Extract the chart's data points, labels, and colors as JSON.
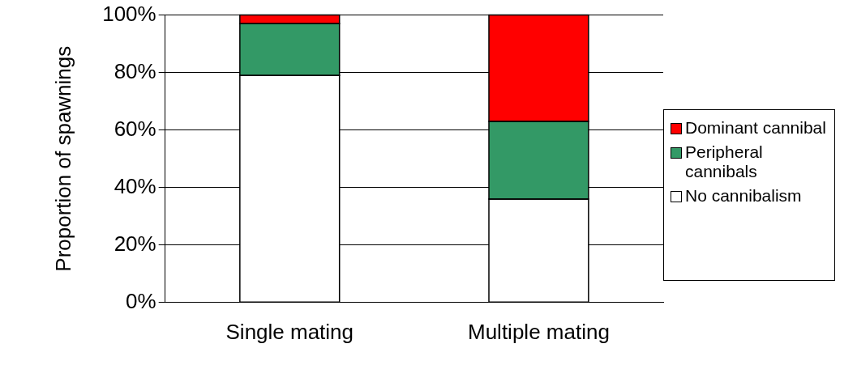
{
  "chart_data": {
    "type": "bar",
    "stacked": true,
    "ylabel": "Proportion of spawnings",
    "categories": [
      "Single mating",
      "Multiple mating"
    ],
    "series": [
      {
        "name": "No cannibalism",
        "color": "#ffffff",
        "values": [
          79,
          36
        ]
      },
      {
        "name": "Peripheral cannibals",
        "color": "#339966",
        "values": [
          18,
          27
        ]
      },
      {
        "name": "Dominant cannibal",
        "color": "#ff0000",
        "values": [
          3,
          37
        ]
      }
    ],
    "ylim": [
      0,
      100
    ],
    "yticks": [
      {
        "value": 0,
        "label": "0%"
      },
      {
        "value": 20,
        "label": "20%"
      },
      {
        "value": 40,
        "label": "40%"
      },
      {
        "value": 60,
        "label": "60%"
      },
      {
        "value": 80,
        "label": "80%"
      },
      {
        "value": 100,
        "label": "100%"
      }
    ],
    "grid": "y",
    "legend": "right"
  }
}
